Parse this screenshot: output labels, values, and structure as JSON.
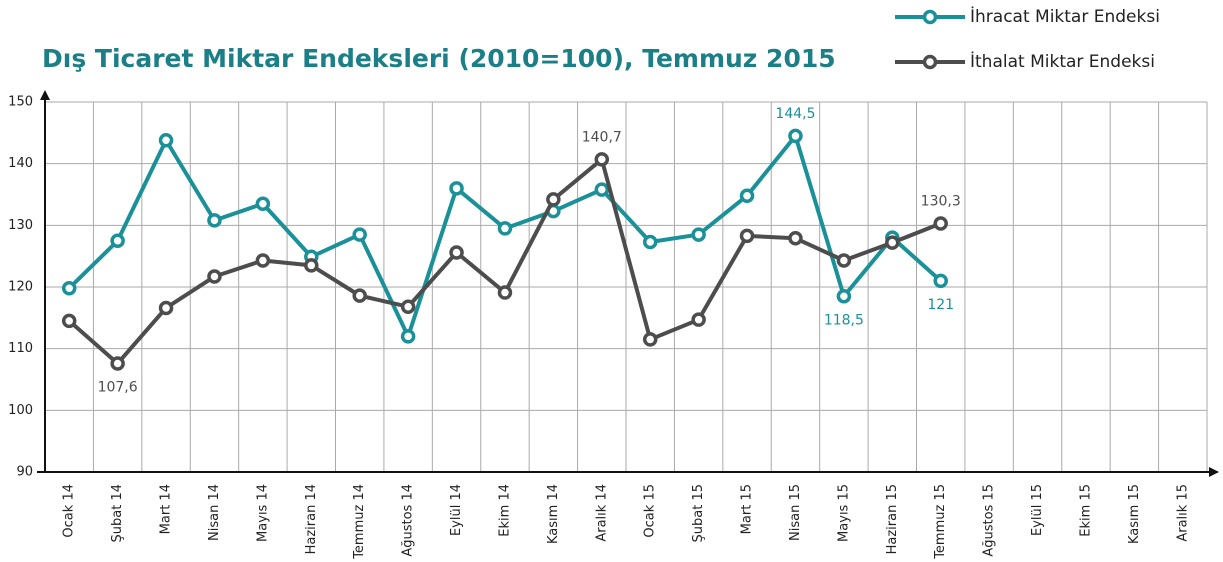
{
  "chart_data": {
    "type": "line",
    "title": "Dış Ticaret Miktar Endeksleri (2010=100), Temmuz 2015",
    "categories": [
      "Ocak 14",
      "Şubat 14",
      "Mart 14",
      "Nisan 14",
      "Mayıs 14",
      "Haziran 14",
      "Temmuz 14",
      "Ağustos 14",
      "Eylül 14",
      "Ekim 14",
      "Kasım 14",
      "Aralık 14",
      "Ocak 15",
      "Şubat 15",
      "Mart 15",
      "Nisan 15",
      "Mayıs 15",
      "Haziran 15",
      "Temmuz 15",
      "Ağustos 15",
      "Eylül 15",
      "Ekim 15",
      "Kasım 15",
      "Aralık 15"
    ],
    "series": [
      {
        "name": "İhracat Miktar Endeksi",
        "color": "#1a9199",
        "values": [
          119.8,
          127.5,
          143.8,
          130.8,
          133.5,
          124.9,
          128.5,
          112,
          136,
          129.5,
          132.3,
          135.8,
          127.3,
          128.5,
          134.8,
          144.5,
          118.5,
          128,
          121,
          null,
          null,
          null,
          null,
          null
        ],
        "value_labels": [
          null,
          null,
          null,
          null,
          null,
          null,
          null,
          null,
          null,
          null,
          null,
          null,
          null,
          null,
          null,
          "144,5",
          "118,5",
          null,
          "121",
          null,
          null,
          null,
          null,
          null
        ]
      },
      {
        "name": "İthalat Miktar Endeksi",
        "color": "#4d4d4d",
        "values": [
          114.5,
          107.6,
          116.6,
          121.7,
          124.3,
          123.5,
          118.6,
          116.8,
          125.6,
          119.1,
          134.2,
          140.7,
          111.5,
          114.7,
          128.3,
          127.9,
          124.3,
          127.2,
          130.3,
          null,
          null,
          null,
          null,
          null
        ],
        "value_labels": [
          null,
          "107,6",
          null,
          null,
          null,
          null,
          null,
          null,
          null,
          null,
          null,
          "140,7",
          null,
          null,
          null,
          null,
          null,
          null,
          "130,3",
          null,
          null,
          null,
          null,
          null
        ]
      }
    ],
    "ylim": [
      90,
      150
    ],
    "yticks": [
      90,
      100,
      110,
      120,
      130,
      140,
      150
    ],
    "grid": true
  }
}
